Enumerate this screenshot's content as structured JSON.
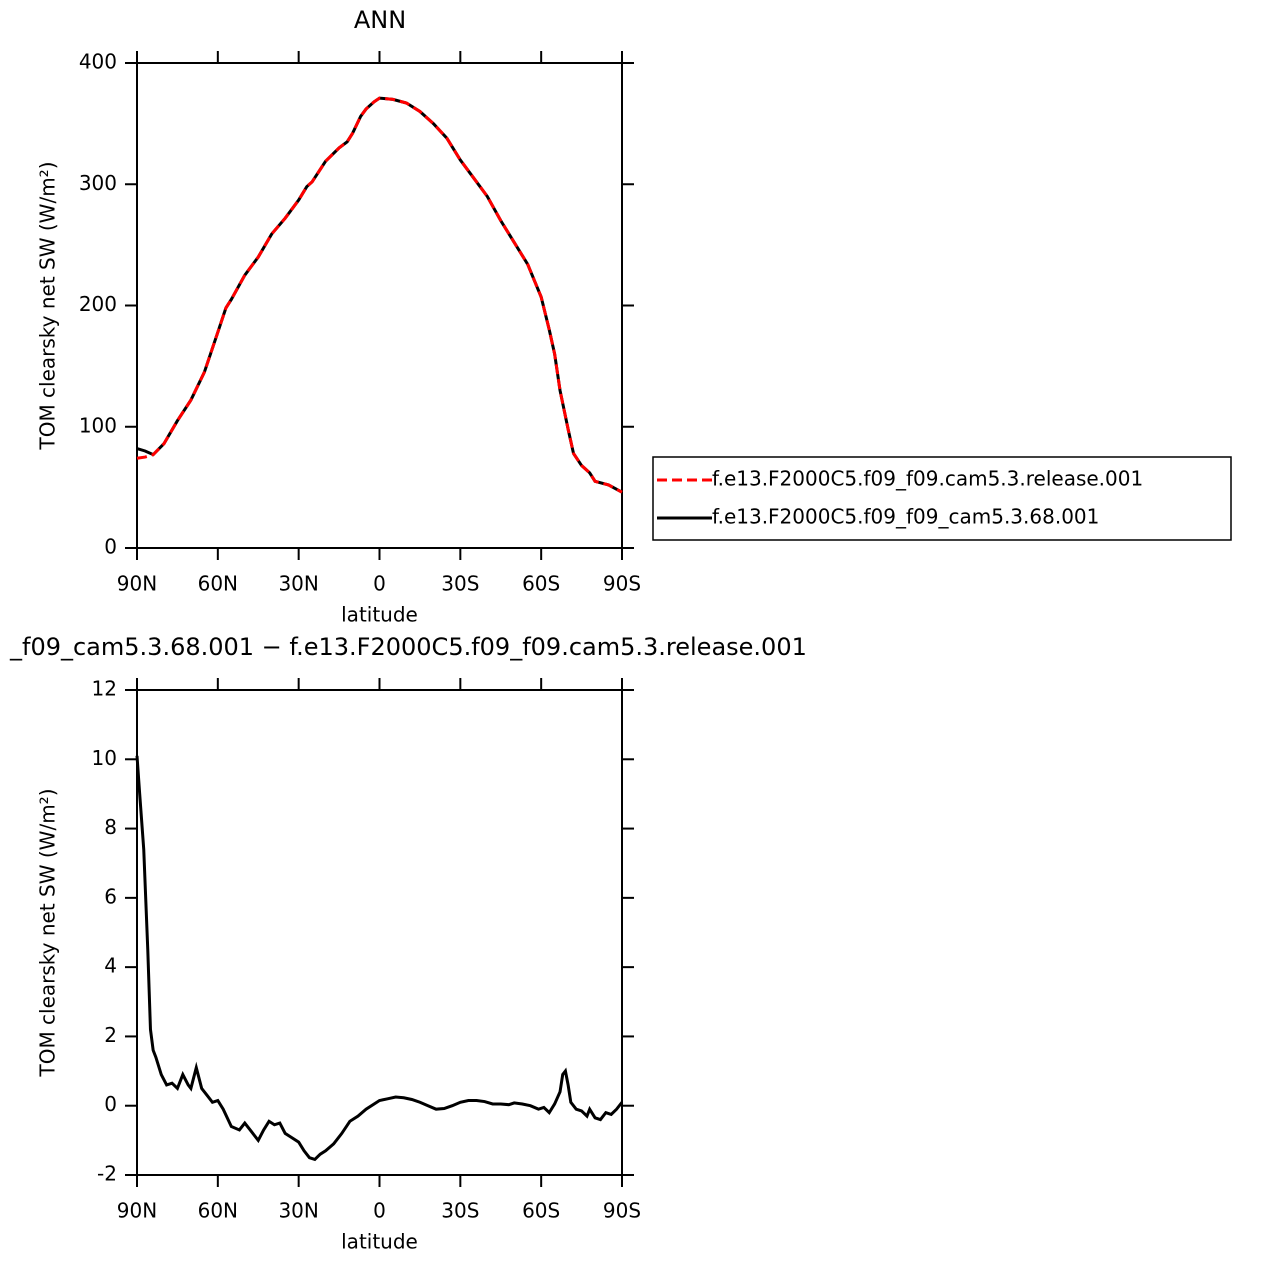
{
  "chart_data": [
    {
      "type": "line",
      "title": "ANN",
      "xlabel": "latitude",
      "ylabel": "TOM clearsky net SW (W/m²)",
      "x": [
        90,
        87,
        84,
        80,
        75,
        70,
        65,
        60,
        57,
        55,
        50,
        45,
        40,
        35,
        30,
        27,
        25,
        20,
        15,
        12,
        10,
        7,
        5,
        2,
        0,
        -5,
        -10,
        -15,
        -20,
        -25,
        -30,
        -35,
        -40,
        -45,
        -50,
        -55,
        -60,
        -63,
        -65,
        -67,
        -70,
        -72,
        -75,
        -78,
        -80,
        -85,
        -90
      ],
      "series": [
        {
          "name": "f.e13.F2000C5.f09_f09.cam5.3.release.001",
          "color": "#ff0000",
          "line_style": "dashed",
          "values": [
            74,
            75,
            77,
            86,
            105,
            122,
            145,
            178,
            198,
            205,
            225,
            240,
            259,
            272,
            287,
            298,
            302,
            319,
            330,
            335,
            342,
            356,
            362,
            368,
            371,
            370,
            367,
            360,
            350,
            338,
            320,
            305,
            290,
            270,
            252,
            234,
            207,
            180,
            160,
            130,
            98,
            78,
            68,
            62,
            55,
            52,
            46
          ]
        },
        {
          "name": "f.e13.F2000C5.f09_f09_cam5.3.68.001",
          "color": "#000000",
          "line_style": "solid",
          "values": [
            82,
            80,
            77,
            86,
            105,
            122,
            145,
            178,
            198,
            205,
            225,
            240,
            259,
            272,
            287,
            298,
            302,
            319,
            330,
            335,
            342,
            356,
            362,
            368,
            371,
            370,
            367,
            360,
            350,
            338,
            320,
            305,
            290,
            270,
            252,
            234,
            207,
            180,
            160,
            130,
            98,
            78,
            68,
            62,
            55,
            52,
            46
          ]
        }
      ],
      "xlim": [
        90,
        -90
      ],
      "xticks": [
        {
          "value": 90,
          "label": "90N"
        },
        {
          "value": 60,
          "label": "60N"
        },
        {
          "value": 30,
          "label": "30N"
        },
        0,
        {
          "value": -30,
          "label": "30S"
        },
        {
          "value": -60,
          "label": "60S"
        },
        {
          "value": -90,
          "label": "90S"
        }
      ],
      "ylim": [
        0,
        400
      ],
      "yticks": [
        0,
        100,
        200,
        300,
        400
      ],
      "legend": "right"
    },
    {
      "type": "line",
      "title": "_f09_cam5.3.68.001 − f.e13.F2000C5.f09_f09.cam5.3.release.001",
      "xlabel": "latitude",
      "ylabel": "TOM clearsky net SW (W/m²)",
      "x": [
        90,
        89,
        87.5,
        86,
        85,
        84,
        83,
        81,
        79,
        77,
        75,
        73,
        71,
        70,
        68,
        66,
        64,
        62,
        60,
        58,
        55,
        52,
        50,
        48,
        45,
        43,
        41,
        39,
        37,
        35,
        33,
        30,
        28,
        26,
        24,
        22,
        20,
        17,
        14,
        11,
        8,
        5,
        2,
        0,
        -3,
        -6,
        -9,
        -12,
        -15,
        -18,
        -21,
        -24,
        -27,
        -30,
        -33,
        -36,
        -39,
        -42,
        -45,
        -48,
        -50,
        -53,
        -56,
        -59,
        -61,
        -63,
        -65,
        -67,
        -68,
        -69,
        -70,
        -71,
        -73,
        -75,
        -77,
        -78,
        -80,
        -82,
        -84,
        -86,
        -88,
        -90
      ],
      "series": [
        {
          "color": "#000000",
          "line_style": "solid",
          "values": [
            10.1,
            9,
            7.4,
            4.5,
            2.2,
            1.6,
            1.4,
            0.9,
            0.6,
            0.65,
            0.5,
            0.9,
            0.6,
            0.5,
            1.1,
            0.5,
            0.3,
            0.1,
            0.15,
            -0.1,
            -0.6,
            -0.7,
            -0.5,
            -0.7,
            -1.0,
            -0.7,
            -0.45,
            -0.55,
            -0.5,
            -0.8,
            -0.9,
            -1.05,
            -1.3,
            -1.5,
            -1.55,
            -1.4,
            -1.3,
            -1.1,
            -0.8,
            -0.45,
            -0.3,
            -0.1,
            0.05,
            0.15,
            0.2,
            0.25,
            0.23,
            0.18,
            0.1,
            0.0,
            -0.1,
            -0.08,
            0.0,
            0.1,
            0.15,
            0.15,
            0.12,
            0.05,
            0.05,
            0.03,
            0.08,
            0.05,
            0.0,
            -0.1,
            -0.05,
            -0.2,
            0.05,
            0.4,
            0.9,
            1.0,
            0.6,
            0.1,
            -0.1,
            -0.15,
            -0.3,
            -0.1,
            -0.35,
            -0.4,
            -0.2,
            -0.25,
            -0.1,
            0.1
          ]
        }
      ],
      "xlim": [
        90,
        -90
      ],
      "xticks": [
        {
          "value": 90,
          "label": "90N"
        },
        {
          "value": 60,
          "label": "60N"
        },
        {
          "value": 30,
          "label": "30N"
        },
        0,
        {
          "value": -30,
          "label": "30S"
        },
        {
          "value": -60,
          "label": "60S"
        },
        {
          "value": -90,
          "label": "90S"
        }
      ],
      "ylim": [
        -2,
        12
      ],
      "yticks": [
        -2,
        0,
        2,
        4,
        6,
        8,
        10,
        12
      ]
    }
  ]
}
